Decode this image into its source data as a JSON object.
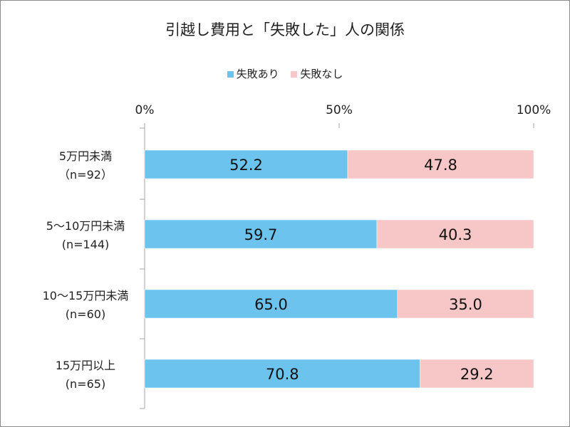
{
  "title": "引越し費用と「失敗した」人の関係",
  "legend": [
    {
      "label": "失敗あり",
      "color": "#6cc3ee"
    },
    {
      "label": "失敗なし",
      "color": "#f7c6c7"
    }
  ],
  "chart_data": {
    "type": "bar",
    "orientation": "horizontal",
    "stacked": true,
    "title": "引越し費用と「失敗した」人の関係",
    "xlim": [
      0,
      100
    ],
    "x_ticks": [
      "0%",
      "50%",
      "100%"
    ],
    "x_tick_values": [
      0,
      50,
      100
    ],
    "categories": [
      [
        "5万円未満",
        "（n=92）"
      ],
      [
        "5～10万円未満",
        "(n=144)"
      ],
      [
        "10～15万円未満",
        "(n=60)"
      ],
      [
        "15万円以上",
        "(n=65)"
      ]
    ],
    "series": [
      {
        "name": "失敗あり",
        "color": "#6cc3ee",
        "values": [
          52.2,
          59.7,
          65.0,
          70.8
        ],
        "labels": [
          "52.2",
          "59.7",
          "65.0",
          "70.8"
        ]
      },
      {
        "name": "失敗なし",
        "color": "#f7c6c7",
        "values": [
          47.8,
          40.3,
          35.0,
          29.2
        ],
        "labels": [
          "47.8",
          "40.3",
          "35.0",
          "29.2"
        ]
      }
    ],
    "legend_position": "top",
    "grid": false
  }
}
